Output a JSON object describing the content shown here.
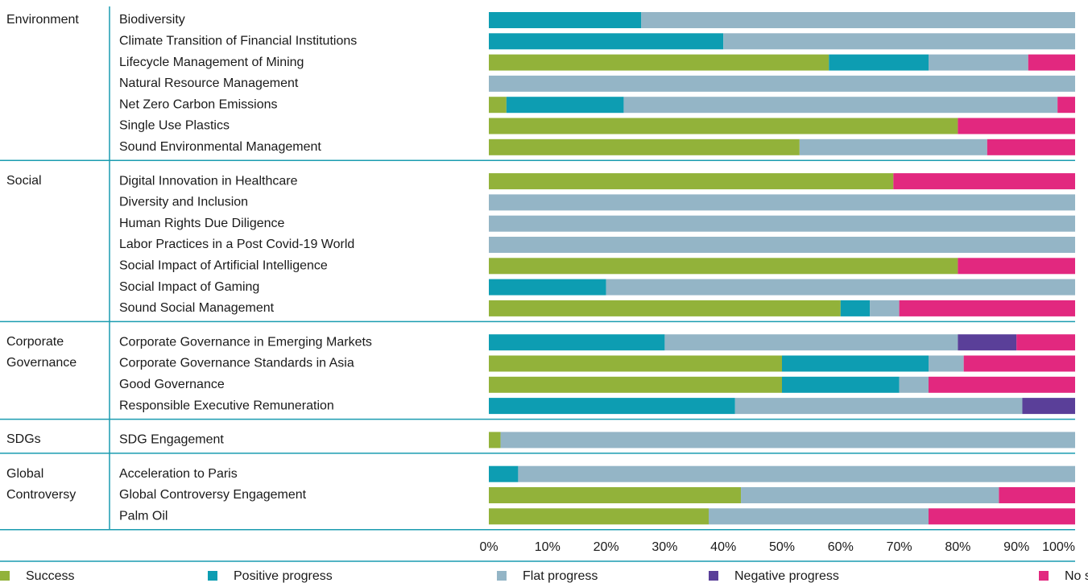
{
  "chart_data": {
    "type": "stacked-bar-horizontal",
    "groups": [
      {
        "name": "Environment",
        "categories": [
          "Biodiversity",
          "Climate Transition of Financial Institutions",
          "Lifecycle Management of Mining",
          "Natural Resource Management",
          "Net Zero Carbon Emissions",
          "Single Use Plastics",
          "Sound Environmental Management"
        ]
      },
      {
        "name": "Social",
        "categories": [
          "Digital Innovation in Healthcare",
          "Diversity and Inclusion",
          "Human Rights Due Diligence",
          "Labor Practices in a Post Covid-19 World",
          "Social Impact of Artificial Intelligence",
          "Social Impact of Gaming",
          "Sound Social Management"
        ]
      },
      {
        "name": "Corporate Governance",
        "categories": [
          "Corporate Governance in Emerging Markets",
          "Corporate Governance Standards in Asia",
          "Good Governance",
          "Responsible Executive Remuneration"
        ]
      },
      {
        "name": "SDGs",
        "categories": [
          "SDG Engagement"
        ]
      },
      {
        "name": "Global Controversy",
        "categories": [
          "Acceleration to Paris",
          "Global Controversy Engagement",
          "Palm Oil"
        ]
      }
    ],
    "series": [
      {
        "name": "Success",
        "color": "#92b23a",
        "values": [
          0,
          0,
          58,
          0,
          3,
          80,
          53,
          69,
          0,
          0,
          0,
          80,
          0,
          60,
          0,
          50,
          50,
          0,
          2,
          0,
          43,
          37.5
        ]
      },
      {
        "name": "Positive progress",
        "color": "#0d9db2",
        "values": [
          26,
          40,
          17,
          0,
          20,
          0,
          0,
          0,
          0,
          0,
          0,
          0,
          20,
          5,
          30,
          25,
          20,
          42,
          0,
          5,
          0,
          0
        ]
      },
      {
        "name": "Flat progress",
        "color": "#94b5c6",
        "values": [
          74,
          60,
          17,
          100,
          74,
          0,
          32,
          0,
          100,
          100,
          100,
          0,
          80,
          5,
          50,
          6,
          5,
          49,
          98,
          95,
          44,
          37.5
        ]
      },
      {
        "name": "Negative progress",
        "color": "#5a3f99",
        "values": [
          0,
          0,
          0,
          0,
          0,
          0,
          0,
          0,
          0,
          0,
          0,
          0,
          0,
          0,
          10,
          0,
          0,
          9,
          0,
          0,
          0,
          0
        ]
      },
      {
        "name": "No success",
        "color": "#e2287f",
        "values": [
          0,
          0,
          8,
          0,
          3,
          20,
          15,
          31,
          0,
          0,
          0,
          20,
          0,
          30,
          10,
          19,
          25,
          0,
          0,
          0,
          13,
          25
        ]
      }
    ],
    "xlim": [
      0,
      100
    ],
    "xticks": [
      {
        "value": 0,
        "label": "0%"
      },
      {
        "value": 10,
        "label": "10%"
      },
      {
        "value": 20,
        "label": "20%"
      },
      {
        "value": 30,
        "label": "30%"
      },
      {
        "value": 40,
        "label": "40%"
      },
      {
        "value": 50,
        "label": "50%"
      },
      {
        "value": 60,
        "label": "60%"
      },
      {
        "value": 70,
        "label": "70%"
      },
      {
        "value": 80,
        "label": "80%"
      },
      {
        "value": 90,
        "label": "90%"
      },
      {
        "value": 100,
        "label": "100%"
      }
    ],
    "legend": "bottom"
  }
}
